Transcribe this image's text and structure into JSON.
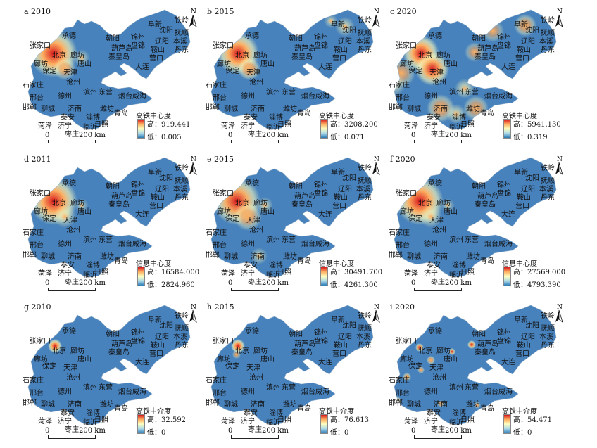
{
  "panels": [
    {
      "title": "a 2010",
      "legend_title": "高铁中心度",
      "high": "高：919.441",
      "low": "低：0.005",
      "scheme": "cent2010"
    },
    {
      "title": "b 2015",
      "legend_title": "高铁中心度",
      "high": "高：3208.200",
      "low": "低：0.071",
      "scheme": "cent2015"
    },
    {
      "title": "c 2020",
      "legend_title": "高铁中心度",
      "high": "高：5941.130",
      "low": "低：0.319",
      "scheme": "cent2020"
    },
    {
      "title": "d 2011",
      "legend_title": "信息中心度",
      "high": "高：16584.000",
      "low": "低：2824.960",
      "scheme": "info"
    },
    {
      "title": "e 2015",
      "legend_title": "信息中心度",
      "high": "高：30491.700",
      "low": "低：4261.300",
      "scheme": "info2"
    },
    {
      "title": "f 2020",
      "legend_title": "信息中心度",
      "high": "高：27569.000",
      "low": "低：4793.390",
      "scheme": "info"
    },
    {
      "title": "g 2010",
      "legend_title": "高铁中介度",
      "high": "高：32.592",
      "low": "低：0",
      "scheme": "betw2010"
    },
    {
      "title": "h 2015",
      "legend_title": "高铁中介度",
      "high": "高：76.613",
      "low": "低：0",
      "scheme": "betw2015"
    },
    {
      "title": "i 2020",
      "legend_title": "高铁中介度",
      "high": "高：54.471",
      "low": "低：0",
      "scheme": "betw2020"
    }
  ],
  "cities": [
    "铁岭",
    "阜新",
    "沈阳",
    "抚顺",
    "承德",
    "朝阳",
    "锦州",
    "辽阳",
    "本溪",
    "张家口",
    "盘锦",
    "鞍山",
    "丹东",
    "葫芦岛",
    "营口",
    "北京",
    "廊坊",
    "秦皇岛",
    "唐山",
    "天津",
    "大连",
    "保定",
    "石家庄",
    "沧州",
    "滨州",
    "东营",
    "德州",
    "烟台",
    "威海",
    "邢台",
    "邯郸",
    "聊城",
    "济南",
    "潍坊",
    "青岛",
    "淄博",
    "泰安",
    "日照",
    "菏泽",
    "济宁",
    "临沂",
    "枣庄"
  ],
  "north_label": "N",
  "scale": {
    "zero": "0",
    "distance": "200 km"
  },
  "colors": {
    "low": "#2c7bb6",
    "mid": "#ffffbf",
    "high": "#d7191c",
    "bg": "#ffffff"
  }
}
